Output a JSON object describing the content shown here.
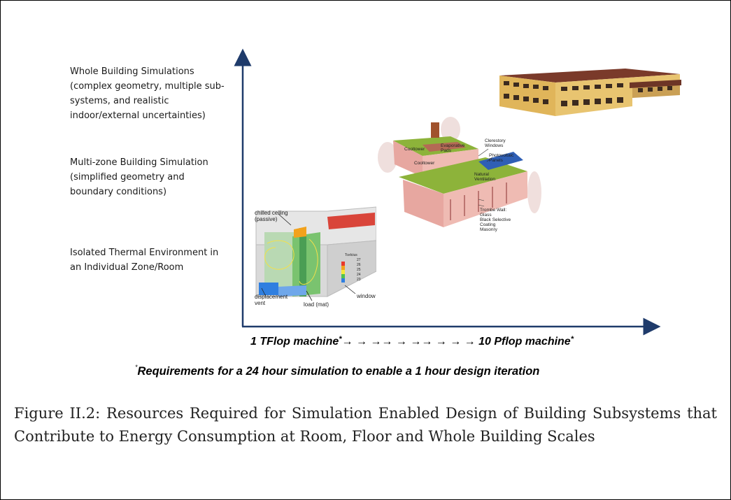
{
  "y_levels": {
    "whole_building": [
      "Whole Building Simulations",
      "(complex geometry, multiple sub-",
      "systems, and realistic",
      "indoor/external uncertainties)"
    ],
    "multi_zone": [
      "Multi-zone Building Simulation",
      "(simplified geometry and",
      "boundary conditions)"
    ],
    "isolated": [
      "Isolated Thermal Environment in",
      "an Individual Zone/Room"
    ]
  },
  "x_axis": {
    "start": "1 TFlop machine",
    "arrows": "→ → →→ → →→ → → →",
    "end": "10 Pflop machine",
    "marker": "*"
  },
  "footnote": {
    "marker": "*",
    "text": "Requirements for a 24  hour simulation to enable a 1 hour design iteration"
  },
  "room_image": {
    "labels": {
      "chilled_ceiling": [
        "chilled ceiling",
        "(passive)"
      ],
      "displacement_vent": [
        "displacement",
        "vent"
      ],
      "load": "load (mat)",
      "window": "window"
    },
    "legend_title": "Tcelcius",
    "legend_values": [
      "27",
      "26",
      "25",
      "24",
      "23"
    ],
    "colors": [
      "#e8382b",
      "#f2a21c",
      "#f5e93a",
      "#51c24e",
      "#2f7fe0"
    ]
  },
  "multizone_image": {
    "labels": {
      "clerestory": [
        "Clerestory",
        "Windows"
      ],
      "photovoltaic": [
        "Photovoltaic",
        "Panels"
      ],
      "evaporative": [
        "Evaporative",
        "Pads"
      ],
      "cooltower_1": "Cooltower",
      "cooltower_2": "Cooltower",
      "natural_vent": [
        "Natural",
        "Ventilation"
      ],
      "trombe": [
        "Trombe Wall:",
        "Glass",
        "Black Selective",
        "Coating",
        "Masonry"
      ]
    },
    "roof_color": "#8db33a",
    "wall_color": "#e7a7a0"
  },
  "whole_building_image": {
    "roof_color": "#7a3a2a",
    "wall_color": "#e6c46a"
  },
  "caption": "Figure II.2: Resources Required for Simulation Enabled Design of Building Subsystems that Contribute to Energy Consumption at Room, Floor and Whole Building Scales"
}
